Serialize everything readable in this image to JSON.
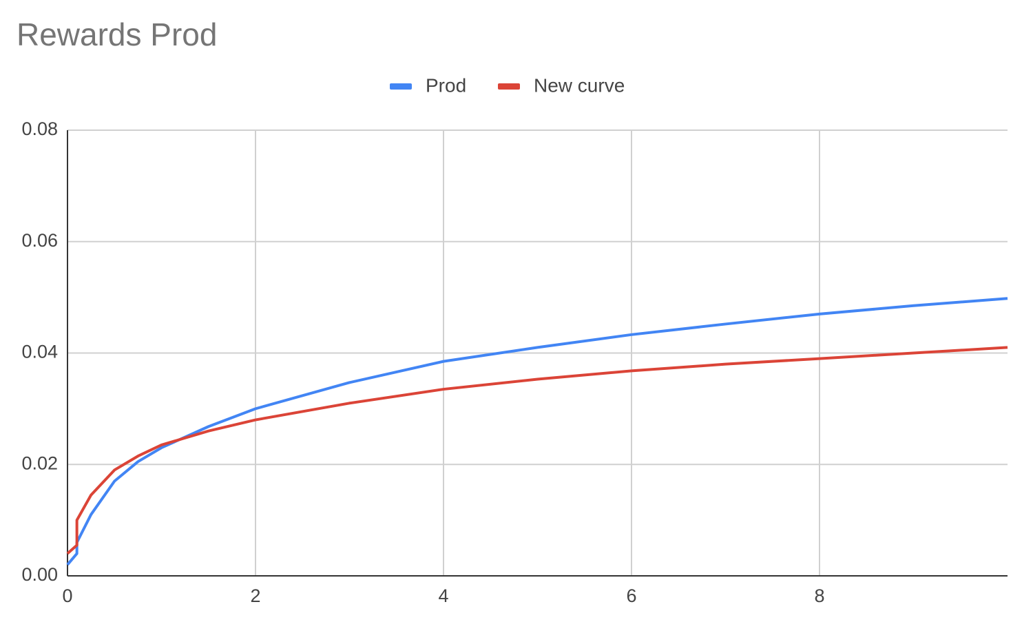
{
  "chart_data": {
    "type": "line",
    "title": "Rewards Prod",
    "x": [
      0,
      0.1,
      0.1,
      0.25,
      0.5,
      0.75,
      1,
      1.5,
      2,
      3,
      4,
      5,
      6,
      7,
      8,
      9,
      10
    ],
    "series": [
      {
        "name": "Prod",
        "color": "#4285f4",
        "values": [
          0.002,
          0.004,
          0.006,
          0.011,
          0.017,
          0.0205,
          0.023,
          0.0268,
          0.03,
          0.0347,
          0.0385,
          0.041,
          0.0433,
          0.0452,
          0.047,
          0.0485,
          0.0498
        ]
      },
      {
        "name": "New curve",
        "color": "#db4437",
        "values": [
          0.004,
          0.0055,
          0.01,
          0.0145,
          0.019,
          0.0215,
          0.0235,
          0.026,
          0.028,
          0.031,
          0.0335,
          0.0353,
          0.0368,
          0.038,
          0.039,
          0.04,
          0.041
        ]
      }
    ],
    "xlim": [
      0,
      10
    ],
    "xticks": [
      0,
      2,
      4,
      6,
      8
    ],
    "ylim": [
      0,
      0.08
    ],
    "yticks": [
      {
        "value": 0,
        "label": "0.00"
      },
      {
        "value": 0.02,
        "label": "0.02"
      },
      {
        "value": 0.04,
        "label": "0.04"
      },
      {
        "value": 0.06,
        "label": "0.06"
      },
      {
        "value": 0.08,
        "label": "0.08"
      }
    ],
    "grid": true,
    "legend": "top"
  }
}
